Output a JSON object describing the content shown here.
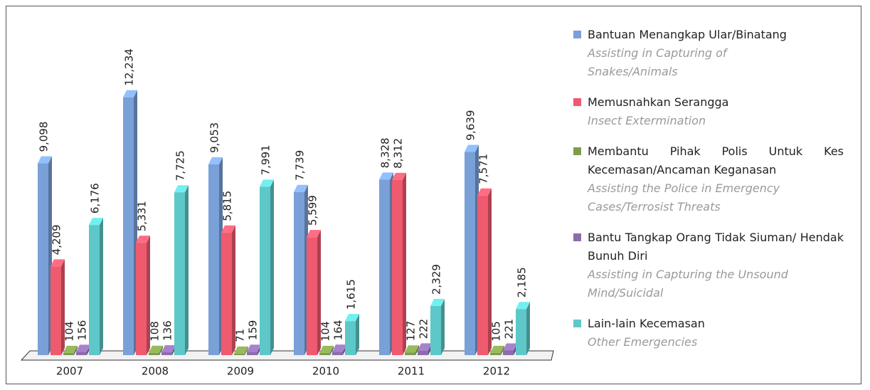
{
  "chart_data": {
    "type": "bar3d",
    "categories": [
      "2007",
      "2008",
      "2009",
      "2010",
      "2011",
      "2012"
    ],
    "ylim": [
      0,
      13000
    ],
    "series": [
      {
        "name": "Bantuan Menangkap Ular/Binatang",
        "name_en": "Assisting in Capturing of Snakes/Animals",
        "color": "#7aa0d8",
        "values": [
          9098,
          12234,
          9053,
          7739,
          8328,
          9639
        ],
        "value_labels": [
          "9,098",
          "12,234",
          "9,053",
          "7,739",
          "8,328",
          "9,639"
        ]
      },
      {
        "name": "Memusnahkan Serangga",
        "name_en": "Insect Extermination",
        "color": "#ef5a6e",
        "values": [
          4209,
          5331,
          5815,
          5599,
          8312,
          7571
        ],
        "value_labels": [
          "4,209",
          "5,331",
          "5,815",
          "5,599",
          "8,312",
          "7,571"
        ]
      },
      {
        "name": "Membantu Pihak Polis Untuk Kes Kecemasan/Ancaman Keganasan",
        "name_en": "Assisting the Police in Emergency Cases/Terrosist Threats",
        "color": "#7e9c4c",
        "values": [
          104,
          108,
          71,
          104,
          127,
          105
        ]
      },
      {
        "name": "Bantu Tangkap Orang Tidak Siuman/ Hendak Bunuh Diri",
        "name_en": "Assisting in Capturing the Unsound Mind/Suicidal",
        "color": "#8c6cac",
        "values": [
          156,
          136,
          159,
          164,
          222,
          221
        ]
      },
      {
        "name": "Lain-lain Kecemasan",
        "name_en": "Other Emergencies",
        "color": "#5ec8c8",
        "values": [
          6176,
          7725,
          7991,
          1615,
          2329,
          2185
        ],
        "value_labels": [
          "6,176",
          "7,725",
          "7,991",
          "1,615",
          "2,329",
          "2,185"
        ]
      }
    ]
  }
}
